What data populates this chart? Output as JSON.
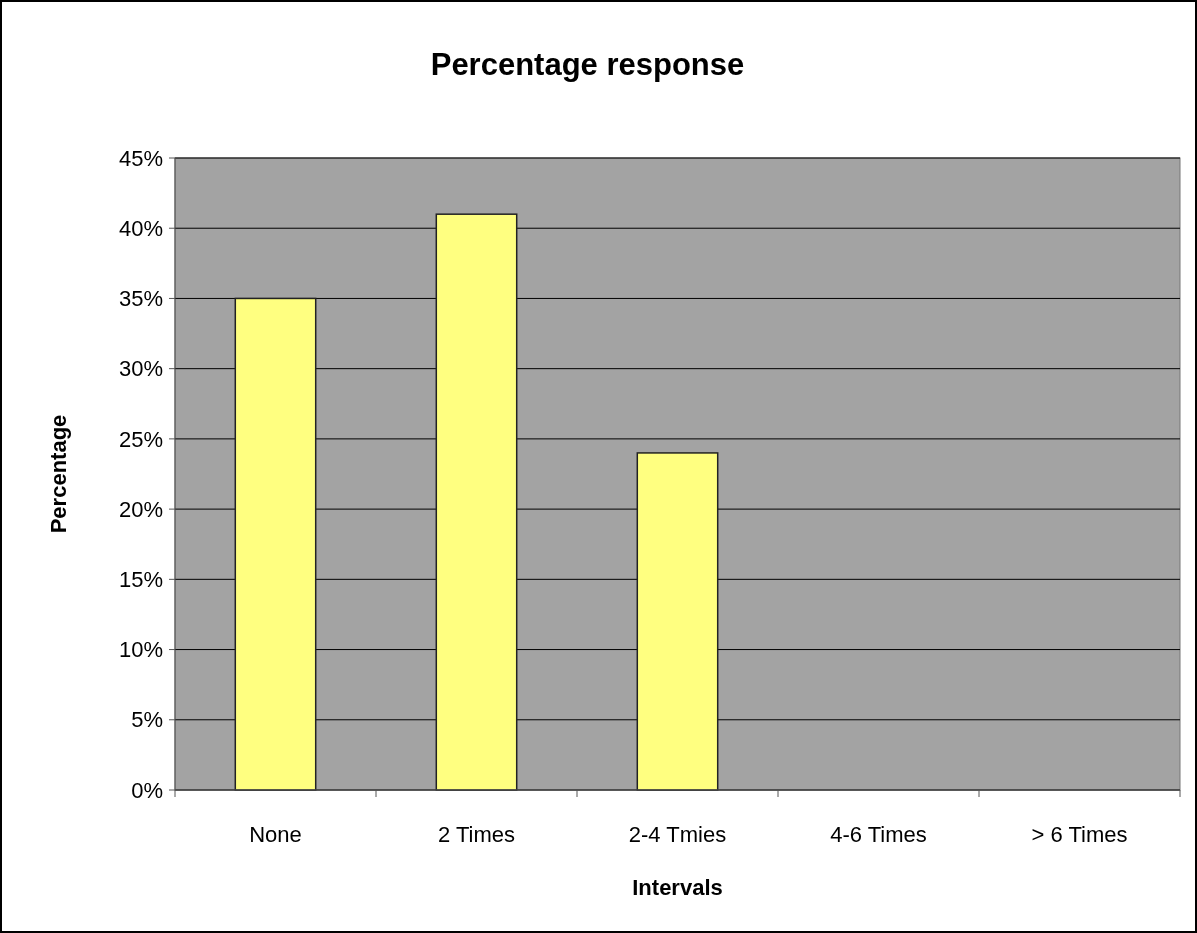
{
  "chart_data": {
    "type": "bar",
    "title": "Percentage response",
    "xlabel": "Intervals",
    "ylabel": "Percentage",
    "categories": [
      "None",
      "2 Times",
      "2-4 Tmies",
      "4-6 Times",
      "> 6 Times"
    ],
    "values": [
      35,
      41,
      24,
      0,
      0
    ],
    "color": "#ffff80",
    "ylim": [
      0,
      45
    ],
    "yticks": [
      {
        "value": 0,
        "label": "0%"
      },
      {
        "value": 5,
        "label": "5%"
      },
      {
        "value": 10,
        "label": "10%"
      },
      {
        "value": 15,
        "label": "15%"
      },
      {
        "value": 20,
        "label": "20%"
      },
      {
        "value": 25,
        "label": "25%"
      },
      {
        "value": 30,
        "label": "30%"
      },
      {
        "value": 35,
        "label": "35%"
      },
      {
        "value": 40,
        "label": "40%"
      },
      {
        "value": 45,
        "label": "45%"
      }
    ],
    "grid": "y"
  }
}
